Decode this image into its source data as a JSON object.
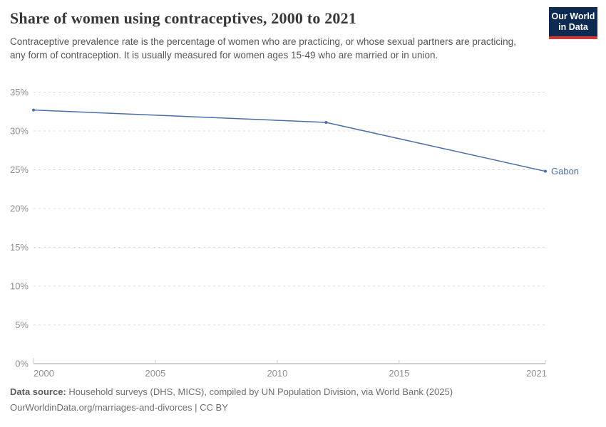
{
  "header": {
    "title": "Share of women using contraceptives, 2000 to 2021",
    "subtitle": "Contraceptive prevalence rate is the percentage of women who are practicing, or whose sexual partners are practicing, any form of contraception. It is usually measured for women ages 15-49 who are married or in union.",
    "logo": {
      "line1": "Our World",
      "line2": "in Data",
      "bg_color": "#0d2a52",
      "bar_color": "#d8352e"
    }
  },
  "chart_data": {
    "type": "line",
    "title": "Share of women using contraceptives, 2000 to 2021",
    "xlabel": "",
    "ylabel": "",
    "xlim": [
      2000,
      2021
    ],
    "ylim": [
      0,
      35
    ],
    "grid": "horizontal-dashed",
    "legend_position": "end-of-line-label",
    "x_ticks": [
      {
        "value": 2000,
        "label": "2000"
      },
      {
        "value": 2005,
        "label": "2005"
      },
      {
        "value": 2010,
        "label": "2010"
      },
      {
        "value": 2015,
        "label": "2015"
      },
      {
        "value": 2021,
        "label": "2021"
      }
    ],
    "y_ticks": [
      {
        "value": 0,
        "label": "0%"
      },
      {
        "value": 5,
        "label": "5%"
      },
      {
        "value": 10,
        "label": "10%"
      },
      {
        "value": 15,
        "label": "15%"
      },
      {
        "value": 20,
        "label": "20%"
      },
      {
        "value": 25,
        "label": "25%"
      },
      {
        "value": 30,
        "label": "30%"
      },
      {
        "value": 35,
        "label": "35%"
      }
    ],
    "series": [
      {
        "name": "Gabon",
        "color": "#4a6ea9",
        "points": [
          {
            "year": 2000,
            "value": 32.7
          },
          {
            "year": 2012,
            "value": 31.1
          },
          {
            "year": 2021,
            "value": 24.8
          }
        ]
      }
    ]
  },
  "footer": {
    "datasource_label": "Data source:",
    "datasource_text": " Household surveys (DHS, MICS), compiled by UN Population Division, via World Bank (2025)",
    "url": "OurWorldinData.org/marriages-and-divorces",
    "separator": " | ",
    "license": "CC BY"
  }
}
